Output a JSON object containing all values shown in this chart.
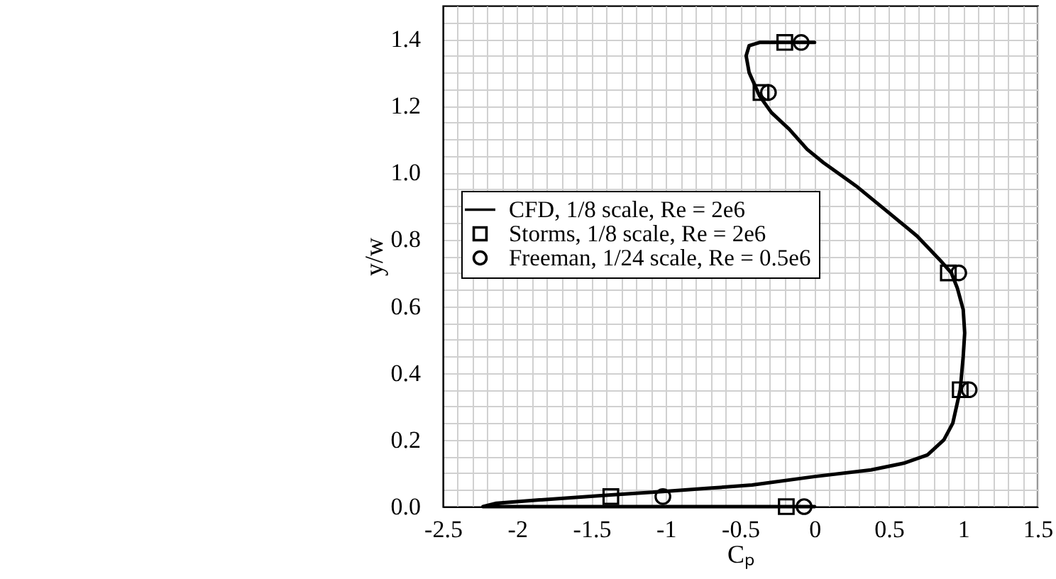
{
  "chart_data": {
    "type": "line",
    "xlabel": "Cₚ",
    "ylabel": "y/w",
    "xlim": [
      -2.5,
      1.5
    ],
    "ylim": [
      0,
      1.5
    ],
    "xticks": [
      -2.5,
      {
        "value": -2.4,
        "label": null
      },
      {
        "value": -2.3,
        "label": null
      },
      {
        "value": -2.2,
        "label": null
      },
      {
        "value": -2.1,
        "label": null
      },
      -2,
      {
        "value": -1.9,
        "label": null
      },
      {
        "value": -1.8,
        "label": null
      },
      {
        "value": -1.7,
        "label": null
      },
      {
        "value": -1.6,
        "label": null
      },
      -1.5,
      {
        "value": -1.4,
        "label": null
      },
      {
        "value": -1.3,
        "label": null
      },
      {
        "value": -1.2,
        "label": null
      },
      {
        "value": -1.1,
        "label": null
      },
      -1,
      {
        "value": -0.9,
        "label": null
      },
      {
        "value": -0.8,
        "label": null
      },
      {
        "value": -0.7,
        "label": null
      },
      {
        "value": -0.6,
        "label": null
      },
      -0.5,
      {
        "value": -0.4,
        "label": null
      },
      {
        "value": -0.3,
        "label": null
      },
      {
        "value": -0.2,
        "label": null
      },
      {
        "value": -0.1,
        "label": null
      },
      0,
      {
        "value": 0.1,
        "label": null
      },
      {
        "value": 0.2,
        "label": null
      },
      {
        "value": 0.3,
        "label": null
      },
      {
        "value": 0.4,
        "label": null
      },
      0.5,
      {
        "value": 0.6,
        "label": null
      },
      {
        "value": 0.7,
        "label": null
      },
      {
        "value": 0.8,
        "label": null
      },
      {
        "value": 0.9,
        "label": null
      },
      1,
      {
        "value": 1.1,
        "label": null
      },
      {
        "value": 1.2,
        "label": null
      },
      {
        "value": 1.3,
        "label": null
      },
      {
        "value": 1.4,
        "label": null
      },
      1.5
    ],
    "yticks": [
      {
        "value": 0,
        "label": "0.0"
      },
      {
        "value": 0.05,
        "label": null
      },
      {
        "value": 0.1,
        "label": null
      },
      {
        "value": 0.15,
        "label": null
      },
      {
        "value": 0.2,
        "label": "0.2"
      },
      {
        "value": 0.25,
        "label": null
      },
      {
        "value": 0.3,
        "label": null
      },
      {
        "value": 0.35,
        "label": null
      },
      {
        "value": 0.4,
        "label": "0.4"
      },
      {
        "value": 0.45,
        "label": null
      },
      {
        "value": 0.5,
        "label": null
      },
      {
        "value": 0.55,
        "label": null
      },
      {
        "value": 0.6,
        "label": "0.6"
      },
      {
        "value": 0.65,
        "label": null
      },
      {
        "value": 0.7,
        "label": null
      },
      {
        "value": 0.75,
        "label": null
      },
      {
        "value": 0.8,
        "label": "0.8"
      },
      {
        "value": 0.85,
        "label": null
      },
      {
        "value": 0.9,
        "label": null
      },
      {
        "value": 0.95,
        "label": null
      },
      {
        "value": 1.0,
        "label": "1.0"
      },
      {
        "value": 1.05,
        "label": null
      },
      {
        "value": 1.1,
        "label": null
      },
      {
        "value": 1.15,
        "label": null
      },
      {
        "value": 1.2,
        "label": "1.2"
      },
      {
        "value": 1.25,
        "label": null
      },
      {
        "value": 1.3,
        "label": null
      },
      {
        "value": 1.35,
        "label": null
      },
      {
        "value": 1.4,
        "label": "1.4"
      },
      {
        "value": 1.45,
        "label": null
      }
    ],
    "grid": true,
    "legend": "left",
    "series": [
      {
        "name": "CFD, 1/8 scale, Re = 2e6",
        "marker": "none",
        "color": "#000000",
        "x": [
          0.0,
          -2.23,
          -2.14,
          -1.85,
          -1.37,
          -1.02,
          -0.71,
          -0.42,
          0.0,
          0.38,
          0.6,
          0.76,
          0.87,
          0.93,
          0.98,
          1.0,
          1.01,
          1.0,
          0.96,
          0.92,
          0.84,
          0.69,
          0.5,
          0.28,
          0.06,
          -0.05,
          -0.17,
          -0.29,
          -0.37,
          -0.44,
          -0.46,
          -0.44,
          -0.37,
          -0.26,
          0.0
        ],
        "values": [
          0.0,
          0.0,
          0.01,
          0.02,
          0.035,
          0.045,
          0.055,
          0.065,
          0.09,
          0.11,
          0.13,
          0.155,
          0.2,
          0.25,
          0.35,
          0.45,
          0.52,
          0.59,
          0.655,
          0.7,
          0.74,
          0.81,
          0.88,
          0.96,
          1.03,
          1.07,
          1.13,
          1.18,
          1.23,
          1.3,
          1.35,
          1.38,
          1.39,
          1.39,
          1.39
        ]
      },
      {
        "name": "Storms, 1/8 scale, Re = 2e6",
        "type": "scatter",
        "marker": "square",
        "color": "#000000",
        "x": [
          -0.19,
          -1.37,
          0.98,
          0.9,
          -0.36,
          -0.2
        ],
        "values": [
          0.0,
          0.03,
          0.35,
          0.7,
          1.24,
          1.39
        ]
      },
      {
        "name": "Freeman, 1/24 scale, Re = 0.5e6",
        "type": "scatter",
        "marker": "circle",
        "color": "#000000",
        "x": [
          -0.07,
          -1.02,
          1.04,
          0.97,
          -0.31,
          -0.09
        ],
        "values": [
          0.0,
          0.03,
          0.35,
          0.7,
          1.24,
          1.39
        ]
      }
    ]
  }
}
